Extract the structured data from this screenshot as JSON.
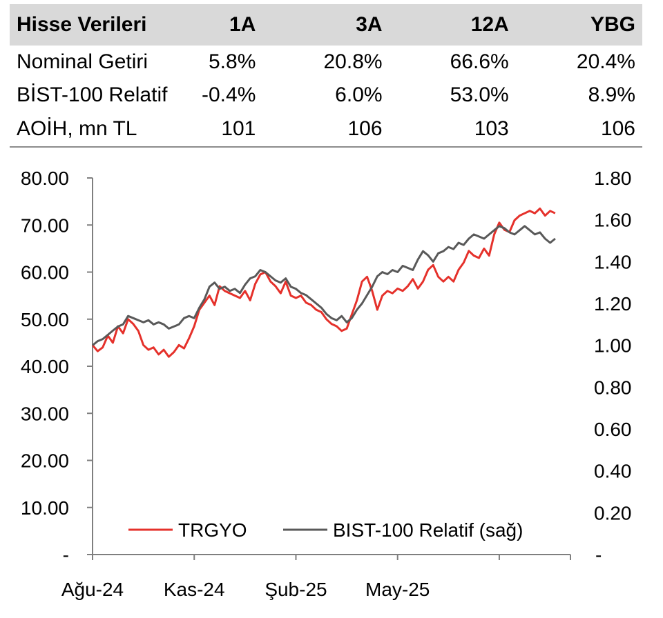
{
  "table": {
    "header": {
      "label": "Hisse Verileri",
      "cols": [
        "1A",
        "3A",
        "12A",
        "YBG"
      ]
    },
    "rows": [
      {
        "label": "Nominal Getiri",
        "values": [
          "5.8%",
          "20.8%",
          "66.6%",
          "20.4%"
        ]
      },
      {
        "label": "BİST-100 Relatif",
        "values": [
          "-0.4%",
          "6.0%",
          "53.0%",
          "8.9%"
        ]
      },
      {
        "label": "AOİH, mn TL",
        "values": [
          "101",
          "106",
          "103",
          "106"
        ]
      }
    ]
  },
  "chart_data": {
    "type": "line",
    "title": "",
    "xlabel": "",
    "ylabel": "",
    "x_ticks": [
      "Ağu-24",
      "Kas-24",
      "Şub-25",
      "May-25"
    ],
    "y_left": {
      "min": 0,
      "max": 80,
      "ticks": [
        "-",
        "10.00",
        "20.00",
        "30.00",
        "40.00",
        "50.00",
        "60.00",
        "70.00",
        "80.00"
      ]
    },
    "y_right": {
      "min": 0,
      "max": 1.8,
      "ticks": [
        "-",
        "0.20",
        "0.40",
        "0.60",
        "0.80",
        "1.00",
        "1.20",
        "1.40",
        "1.60",
        "1.80"
      ]
    },
    "legend_position": "bottom-inside",
    "series": [
      {
        "name": "TRGYO",
        "axis": "left",
        "color": "#e5312b",
        "points": [
          [
            0,
            44.5
          ],
          [
            0.05,
            43.2
          ],
          [
            0.1,
            44.0
          ],
          [
            0.15,
            46.5
          ],
          [
            0.2,
            45.0
          ],
          [
            0.25,
            48.5
          ],
          [
            0.3,
            47.0
          ],
          [
            0.35,
            50.0
          ],
          [
            0.4,
            49.0
          ],
          [
            0.45,
            47.5
          ],
          [
            0.5,
            44.5
          ],
          [
            0.55,
            43.5
          ],
          [
            0.6,
            44.0
          ],
          [
            0.65,
            42.5
          ],
          [
            0.7,
            43.5
          ],
          [
            0.75,
            42.0
          ],
          [
            0.8,
            43.0
          ],
          [
            0.85,
            44.5
          ],
          [
            0.9,
            43.8
          ],
          [
            0.95,
            46.0
          ],
          [
            1.0,
            48.5
          ],
          [
            1.05,
            52.0
          ],
          [
            1.1,
            53.5
          ],
          [
            1.15,
            55.0
          ],
          [
            1.2,
            53.0
          ],
          [
            1.25,
            57.0
          ],
          [
            1.3,
            56.0
          ],
          [
            1.35,
            55.5
          ],
          [
            1.4,
            55.0
          ],
          [
            1.45,
            54.5
          ],
          [
            1.5,
            56.0
          ],
          [
            1.55,
            54.0
          ],
          [
            1.6,
            57.5
          ],
          [
            1.65,
            59.5
          ],
          [
            1.7,
            60.0
          ],
          [
            1.75,
            58.0
          ],
          [
            1.8,
            57.0
          ],
          [
            1.85,
            55.5
          ],
          [
            1.9,
            58.0
          ],
          [
            1.95,
            55.0
          ],
          [
            2.0,
            54.5
          ],
          [
            2.05,
            55.0
          ],
          [
            2.1,
            53.5
          ],
          [
            2.15,
            53.0
          ],
          [
            2.2,
            52.0
          ],
          [
            2.25,
            51.5
          ],
          [
            2.3,
            50.0
          ],
          [
            2.35,
            49.0
          ],
          [
            2.4,
            48.5
          ],
          [
            2.45,
            47.5
          ],
          [
            2.5,
            48.0
          ],
          [
            2.55,
            51.0
          ],
          [
            2.6,
            54.0
          ],
          [
            2.65,
            58.0
          ],
          [
            2.7,
            59.0
          ],
          [
            2.75,
            56.0
          ],
          [
            2.8,
            52.0
          ],
          [
            2.85,
            55.0
          ],
          [
            2.9,
            56.0
          ],
          [
            2.95,
            55.5
          ],
          [
            3.0,
            56.5
          ],
          [
            3.05,
            56.0
          ],
          [
            3.1,
            57.0
          ],
          [
            3.15,
            58.5
          ],
          [
            3.2,
            56.5
          ],
          [
            3.25,
            58.0
          ],
          [
            3.3,
            60.5
          ],
          [
            3.35,
            61.5
          ],
          [
            3.4,
            59.0
          ],
          [
            3.45,
            58.0
          ],
          [
            3.5,
            59.0
          ],
          [
            3.55,
            58.0
          ],
          [
            3.6,
            60.5
          ],
          [
            3.65,
            62.0
          ],
          [
            3.7,
            64.5
          ],
          [
            3.75,
            63.5
          ],
          [
            3.8,
            63.0
          ],
          [
            3.85,
            65.0
          ],
          [
            3.9,
            63.5
          ],
          [
            3.95,
            68.0
          ],
          [
            4.0,
            70.5
          ],
          [
            4.05,
            69.0
          ],
          [
            4.1,
            68.5
          ],
          [
            4.15,
            71.0
          ],
          [
            4.2,
            72.0
          ],
          [
            4.25,
            72.5
          ],
          [
            4.3,
            73.0
          ],
          [
            4.35,
            72.5
          ],
          [
            4.4,
            73.5
          ],
          [
            4.45,
            72.0
          ],
          [
            4.5,
            73.0
          ],
          [
            4.55,
            72.5
          ]
        ]
      },
      {
        "name": "BIST-100 Relatif (sağ)",
        "axis": "right",
        "color": "#595959",
        "points": [
          [
            0,
            1.0
          ],
          [
            0.05,
            1.02
          ],
          [
            0.1,
            1.03
          ],
          [
            0.15,
            1.05
          ],
          [
            0.2,
            1.07
          ],
          [
            0.25,
            1.09
          ],
          [
            0.3,
            1.1
          ],
          [
            0.35,
            1.14
          ],
          [
            0.4,
            1.13
          ],
          [
            0.45,
            1.12
          ],
          [
            0.5,
            1.11
          ],
          [
            0.55,
            1.12
          ],
          [
            0.6,
            1.1
          ],
          [
            0.65,
            1.11
          ],
          [
            0.7,
            1.1
          ],
          [
            0.75,
            1.08
          ],
          [
            0.8,
            1.09
          ],
          [
            0.85,
            1.1
          ],
          [
            0.9,
            1.13
          ],
          [
            0.95,
            1.14
          ],
          [
            1.0,
            1.13
          ],
          [
            1.05,
            1.18
          ],
          [
            1.1,
            1.22
          ],
          [
            1.15,
            1.28
          ],
          [
            1.2,
            1.3
          ],
          [
            1.25,
            1.27
          ],
          [
            1.3,
            1.28
          ],
          [
            1.35,
            1.26
          ],
          [
            1.4,
            1.27
          ],
          [
            1.45,
            1.25
          ],
          [
            1.5,
            1.29
          ],
          [
            1.55,
            1.32
          ],
          [
            1.6,
            1.33
          ],
          [
            1.65,
            1.36
          ],
          [
            1.7,
            1.35
          ],
          [
            1.75,
            1.33
          ],
          [
            1.8,
            1.31
          ],
          [
            1.85,
            1.3
          ],
          [
            1.9,
            1.32
          ],
          [
            1.95,
            1.28
          ],
          [
            2.0,
            1.27
          ],
          [
            2.05,
            1.25
          ],
          [
            2.1,
            1.24
          ],
          [
            2.15,
            1.22
          ],
          [
            2.2,
            1.2
          ],
          [
            2.25,
            1.18
          ],
          [
            2.3,
            1.15
          ],
          [
            2.35,
            1.13
          ],
          [
            2.4,
            1.12
          ],
          [
            2.45,
            1.14
          ],
          [
            2.5,
            1.11
          ],
          [
            2.55,
            1.13
          ],
          [
            2.6,
            1.17
          ],
          [
            2.65,
            1.2
          ],
          [
            2.7,
            1.24
          ],
          [
            2.75,
            1.28
          ],
          [
            2.8,
            1.33
          ],
          [
            2.85,
            1.35
          ],
          [
            2.9,
            1.34
          ],
          [
            2.95,
            1.36
          ],
          [
            3.0,
            1.35
          ],
          [
            3.05,
            1.38
          ],
          [
            3.1,
            1.37
          ],
          [
            3.15,
            1.36
          ],
          [
            3.2,
            1.41
          ],
          [
            3.25,
            1.45
          ],
          [
            3.3,
            1.43
          ],
          [
            3.35,
            1.4
          ],
          [
            3.4,
            1.44
          ],
          [
            3.45,
            1.45
          ],
          [
            3.5,
            1.47
          ],
          [
            3.55,
            1.46
          ],
          [
            3.6,
            1.49
          ],
          [
            3.65,
            1.48
          ],
          [
            3.7,
            1.51
          ],
          [
            3.75,
            1.53
          ],
          [
            3.8,
            1.52
          ],
          [
            3.85,
            1.51
          ],
          [
            3.9,
            1.53
          ],
          [
            3.95,
            1.55
          ],
          [
            4.0,
            1.57
          ],
          [
            4.05,
            1.56
          ],
          [
            4.1,
            1.54
          ],
          [
            4.15,
            1.53
          ],
          [
            4.2,
            1.55
          ],
          [
            4.25,
            1.57
          ],
          [
            4.3,
            1.55
          ],
          [
            4.35,
            1.53
          ],
          [
            4.4,
            1.54
          ],
          [
            4.45,
            1.51
          ],
          [
            4.5,
            1.49
          ],
          [
            4.55,
            1.51
          ]
        ]
      }
    ]
  }
}
